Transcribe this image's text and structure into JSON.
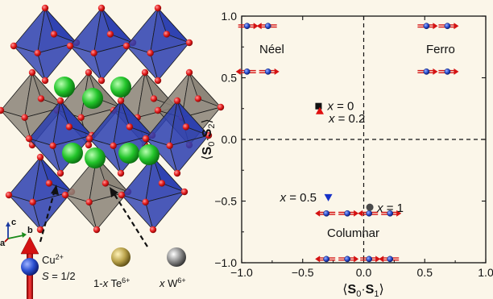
{
  "figure": {
    "legend": {
      "cu_ion": "Cu",
      "cu_charge": "2+",
      "spin_label": "S",
      "spin_value": " = 1/2",
      "te_prefix": "1-",
      "te_var": "x",
      "te_ion": " Te",
      "te_charge": "6+",
      "w_var": "x",
      "w_ion": " W",
      "w_charge": "6+"
    },
    "crystal_axes": {
      "c": "c",
      "a": "a",
      "b": "b"
    },
    "colors": {
      "octa_cu": "#2c3fb0",
      "octa_te": "#8a8378",
      "cu_atom": "#2a4fd0",
      "o_atom": "#e21b1b",
      "sr_atom": "#22c42a",
      "te_atom": "#b9a24a",
      "w_atom": "#8c8c8c"
    }
  },
  "chart_data": {
    "type": "scatter",
    "xlim": [
      -1.0,
      1.0
    ],
    "ylim": [
      -1.0,
      1.0
    ],
    "x_ticks": [
      "−1.0",
      "−0.5",
      "0.0",
      "0.5",
      "1.0"
    ],
    "y_ticks": [
      "1.0",
      "0.5",
      "0.0",
      "−0.5",
      "−1.0"
    ],
    "xlabel": {
      "open": "⟨",
      "a": "S",
      "sub0": "0",
      "dot": "·",
      "b": "S",
      "sub1": "1",
      "close": "⟩"
    },
    "ylabel": {
      "open": "⟨",
      "a": "S",
      "sub0": "0",
      "dot": "·",
      "b": "S",
      "sub1": "2",
      "close": "⟩"
    },
    "regions": {
      "neel": "Néel",
      "ferro": "Ferro",
      "columnar": "Columnar"
    },
    "points": [
      {
        "x": -0.37,
        "y": 0.27,
        "marker": "square",
        "color": "#111111",
        "label_var": "x",
        "label_val": " = 0"
      },
      {
        "x": -0.36,
        "y": 0.23,
        "marker": "triangle-up",
        "color": "#e01010",
        "label_var": "x",
        "label_val": " = 0.2"
      },
      {
        "x": -0.29,
        "y": -0.47,
        "marker": "triangle-down",
        "color": "#1530c8",
        "label_var": "x",
        "label_val": " = 0.5"
      },
      {
        "x": 0.05,
        "y": -0.55,
        "marker": "circle",
        "color": "#4a4a4a",
        "label_var": "x",
        "label_val": " = 1"
      }
    ],
    "spin_pairs": [
      {
        "x": -0.87,
        "y": 0.92,
        "left": "right",
        "right": "left"
      },
      {
        "x": -0.87,
        "y": 0.55,
        "left": "left",
        "right": "right"
      },
      {
        "x": 0.6,
        "y": 0.92,
        "left": "right",
        "right": "right"
      },
      {
        "x": 0.6,
        "y": 0.55,
        "left": "right",
        "right": "right"
      },
      {
        "x": -0.22,
        "y": -0.6,
        "left": "left",
        "right": "right"
      },
      {
        "x": 0.13,
        "y": -0.6,
        "left": "left",
        "right": "right"
      },
      {
        "x": -0.22,
        "y": -0.97,
        "left": "left",
        "right": "right"
      },
      {
        "x": 0.13,
        "y": -0.97,
        "left": "right",
        "right": "left"
      }
    ]
  }
}
